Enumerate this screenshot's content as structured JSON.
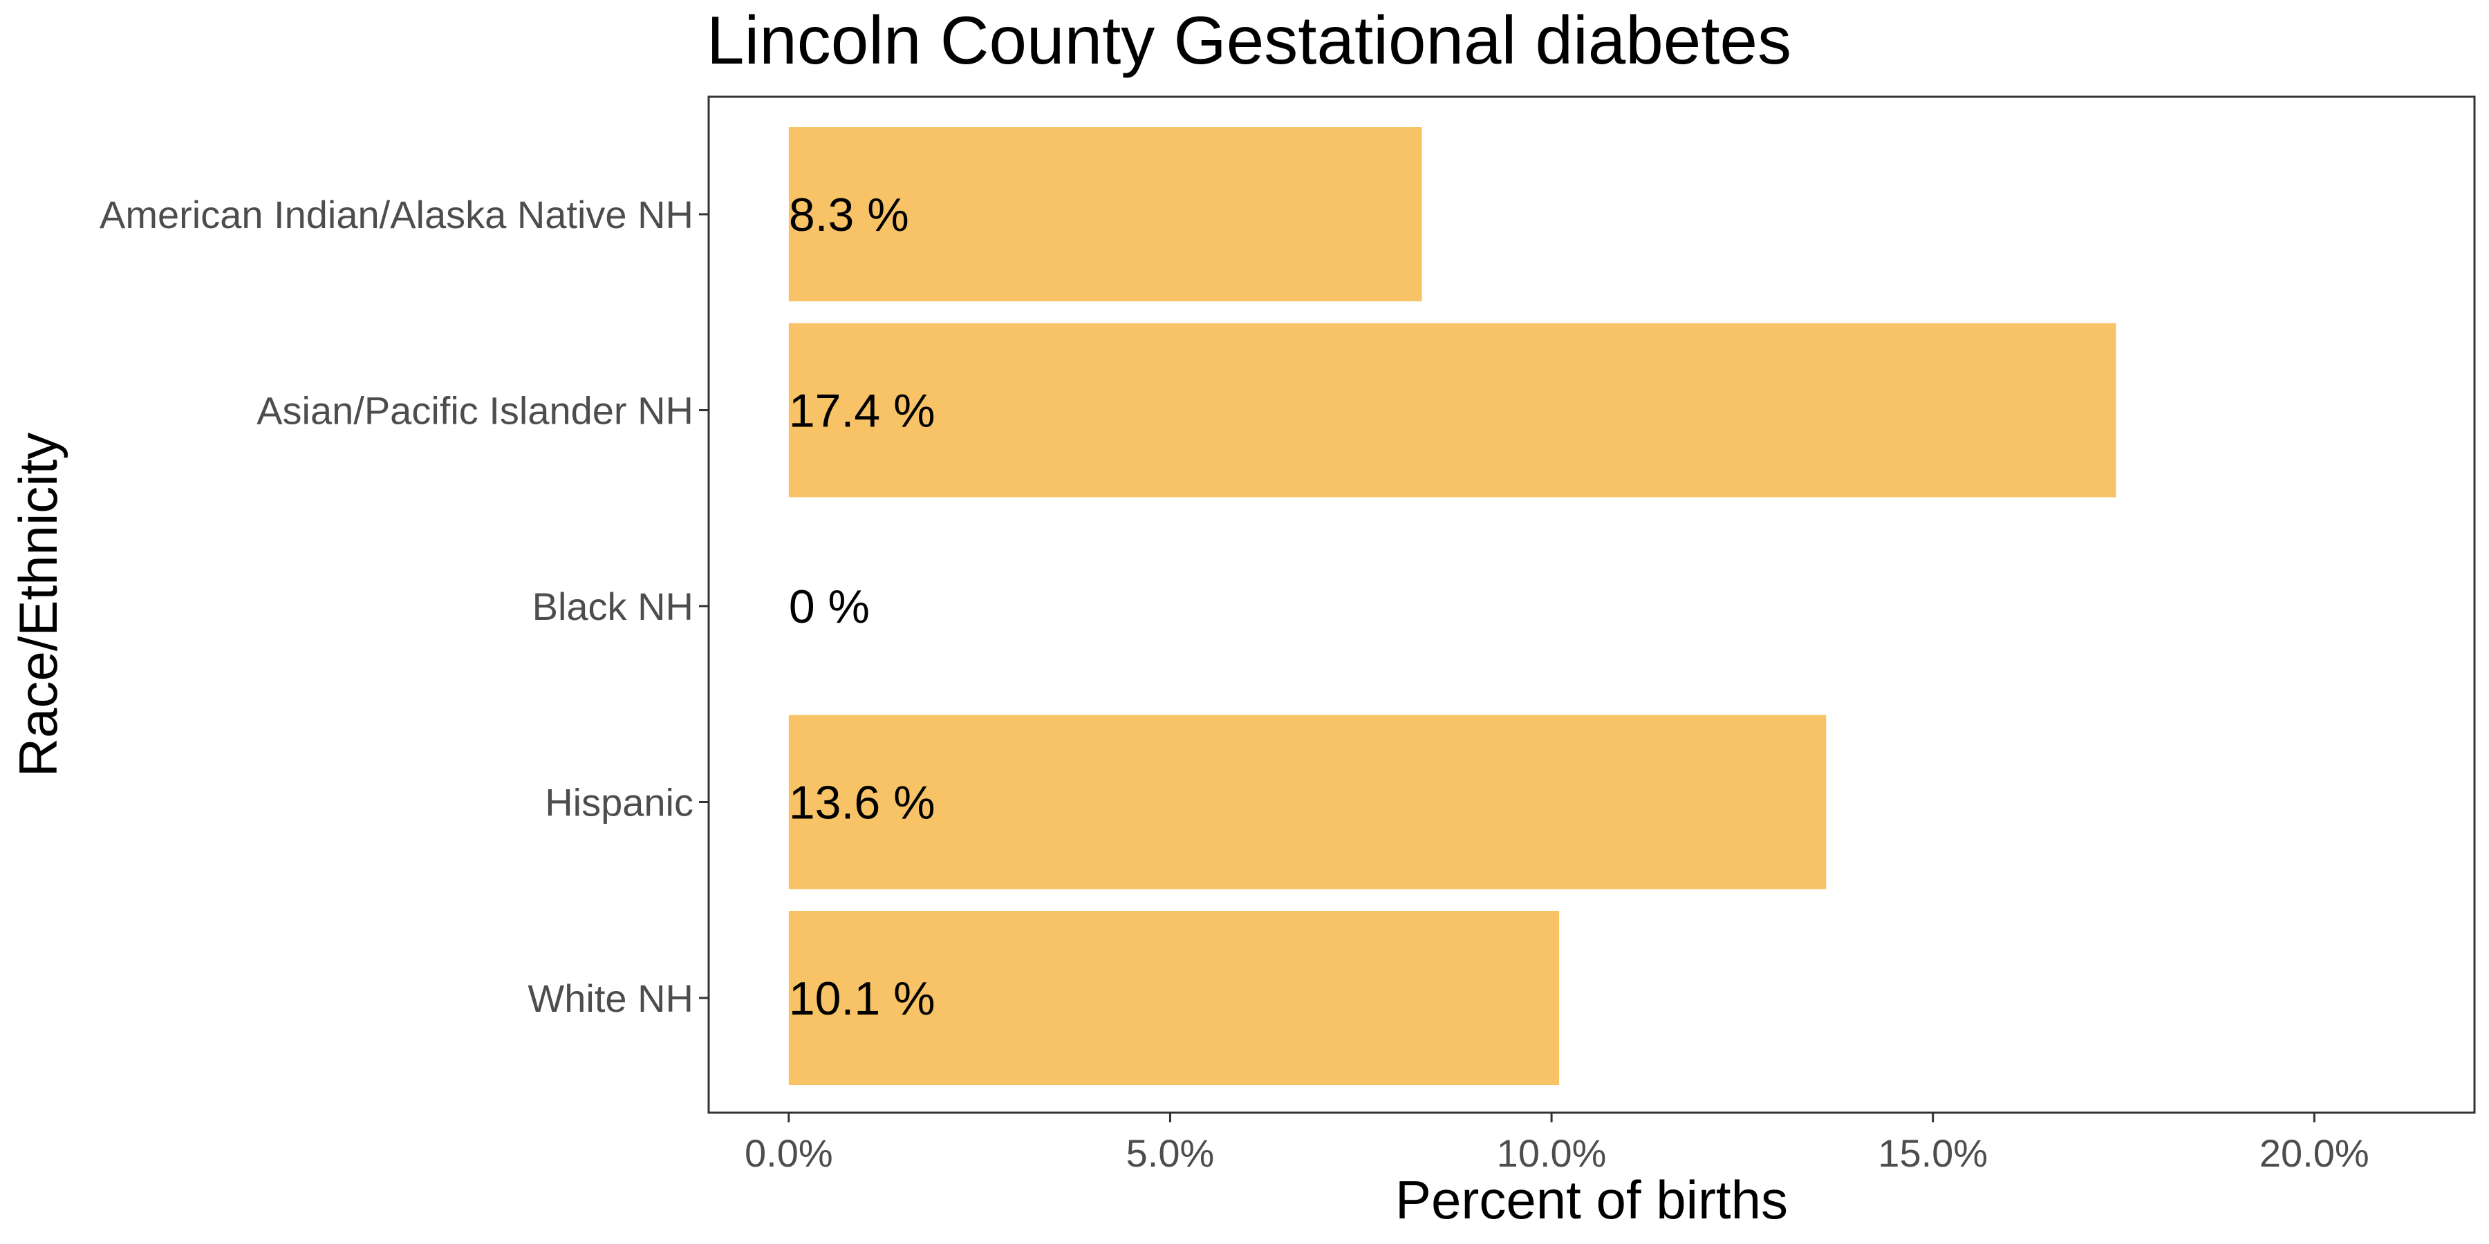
{
  "chart_data": {
    "type": "bar",
    "orientation": "horizontal",
    "title": "Lincoln County Gestational diabetes",
    "xlabel": "Percent of births",
    "ylabel": "Race/Ethnicity",
    "categories": [
      "American Indian/Alaska Native NH",
      "Asian/Pacific Islander NH",
      "Black NH",
      "Hispanic",
      "White NH"
    ],
    "values": [
      8.3,
      17.4,
      0,
      13.6,
      10.1
    ],
    "data_labels": [
      "8.3 %",
      "17.4 %",
      "0 %",
      "13.6 %",
      "10.1 %"
    ],
    "x_ticks": [
      0,
      5,
      10,
      15,
      20
    ],
    "x_tick_labels": [
      "0.0%",
      "5.0%",
      "10.0%",
      "15.0%",
      "20.0%"
    ],
    "xlim": [
      -1.05,
      22.1
    ],
    "bar_color": "#f8c366",
    "grid": false,
    "legend": "none"
  }
}
